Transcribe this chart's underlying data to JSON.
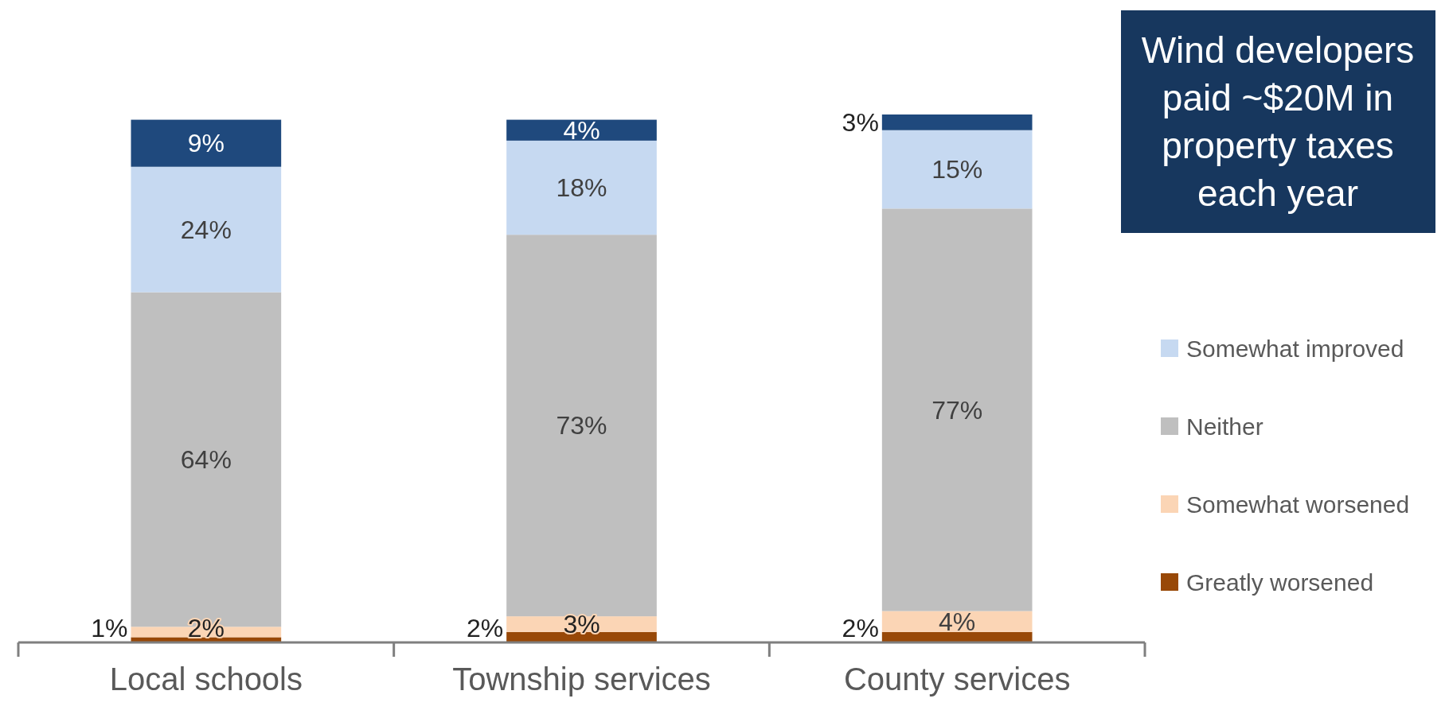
{
  "chart_data": {
    "type": "bar",
    "stacked": true,
    "categories": [
      "Local schools",
      "Township services",
      "County services"
    ],
    "series": [
      {
        "name": "Greatly worsened",
        "color": "#984807",
        "values": [
          1,
          2,
          2
        ],
        "value_labels": [
          "1%",
          "2%",
          "2%"
        ]
      },
      {
        "name": "Somewhat worsened",
        "color": "#fbd5b5",
        "values": [
          2,
          3,
          4
        ],
        "value_labels": [
          "2%",
          "3%",
          "4%"
        ]
      },
      {
        "name": "Neither",
        "color": "#bfbfbf",
        "values": [
          64,
          73,
          77
        ],
        "value_labels": [
          "64%",
          "73%",
          "77%"
        ]
      },
      {
        "name": "Somewhat improved",
        "color": "#c6d9f1",
        "values": [
          24,
          18,
          15
        ],
        "value_labels": [
          "24%",
          "18%",
          "15%"
        ]
      },
      {
        "color": "#1f497d",
        "values": [
          9,
          4,
          3
        ],
        "value_labels": [
          "9%",
          "4%",
          "3%"
        ]
      }
    ],
    "legend": "right",
    "annotations": [
      "Wind developers paid ~$20M in property taxes each year"
    ]
  }
}
